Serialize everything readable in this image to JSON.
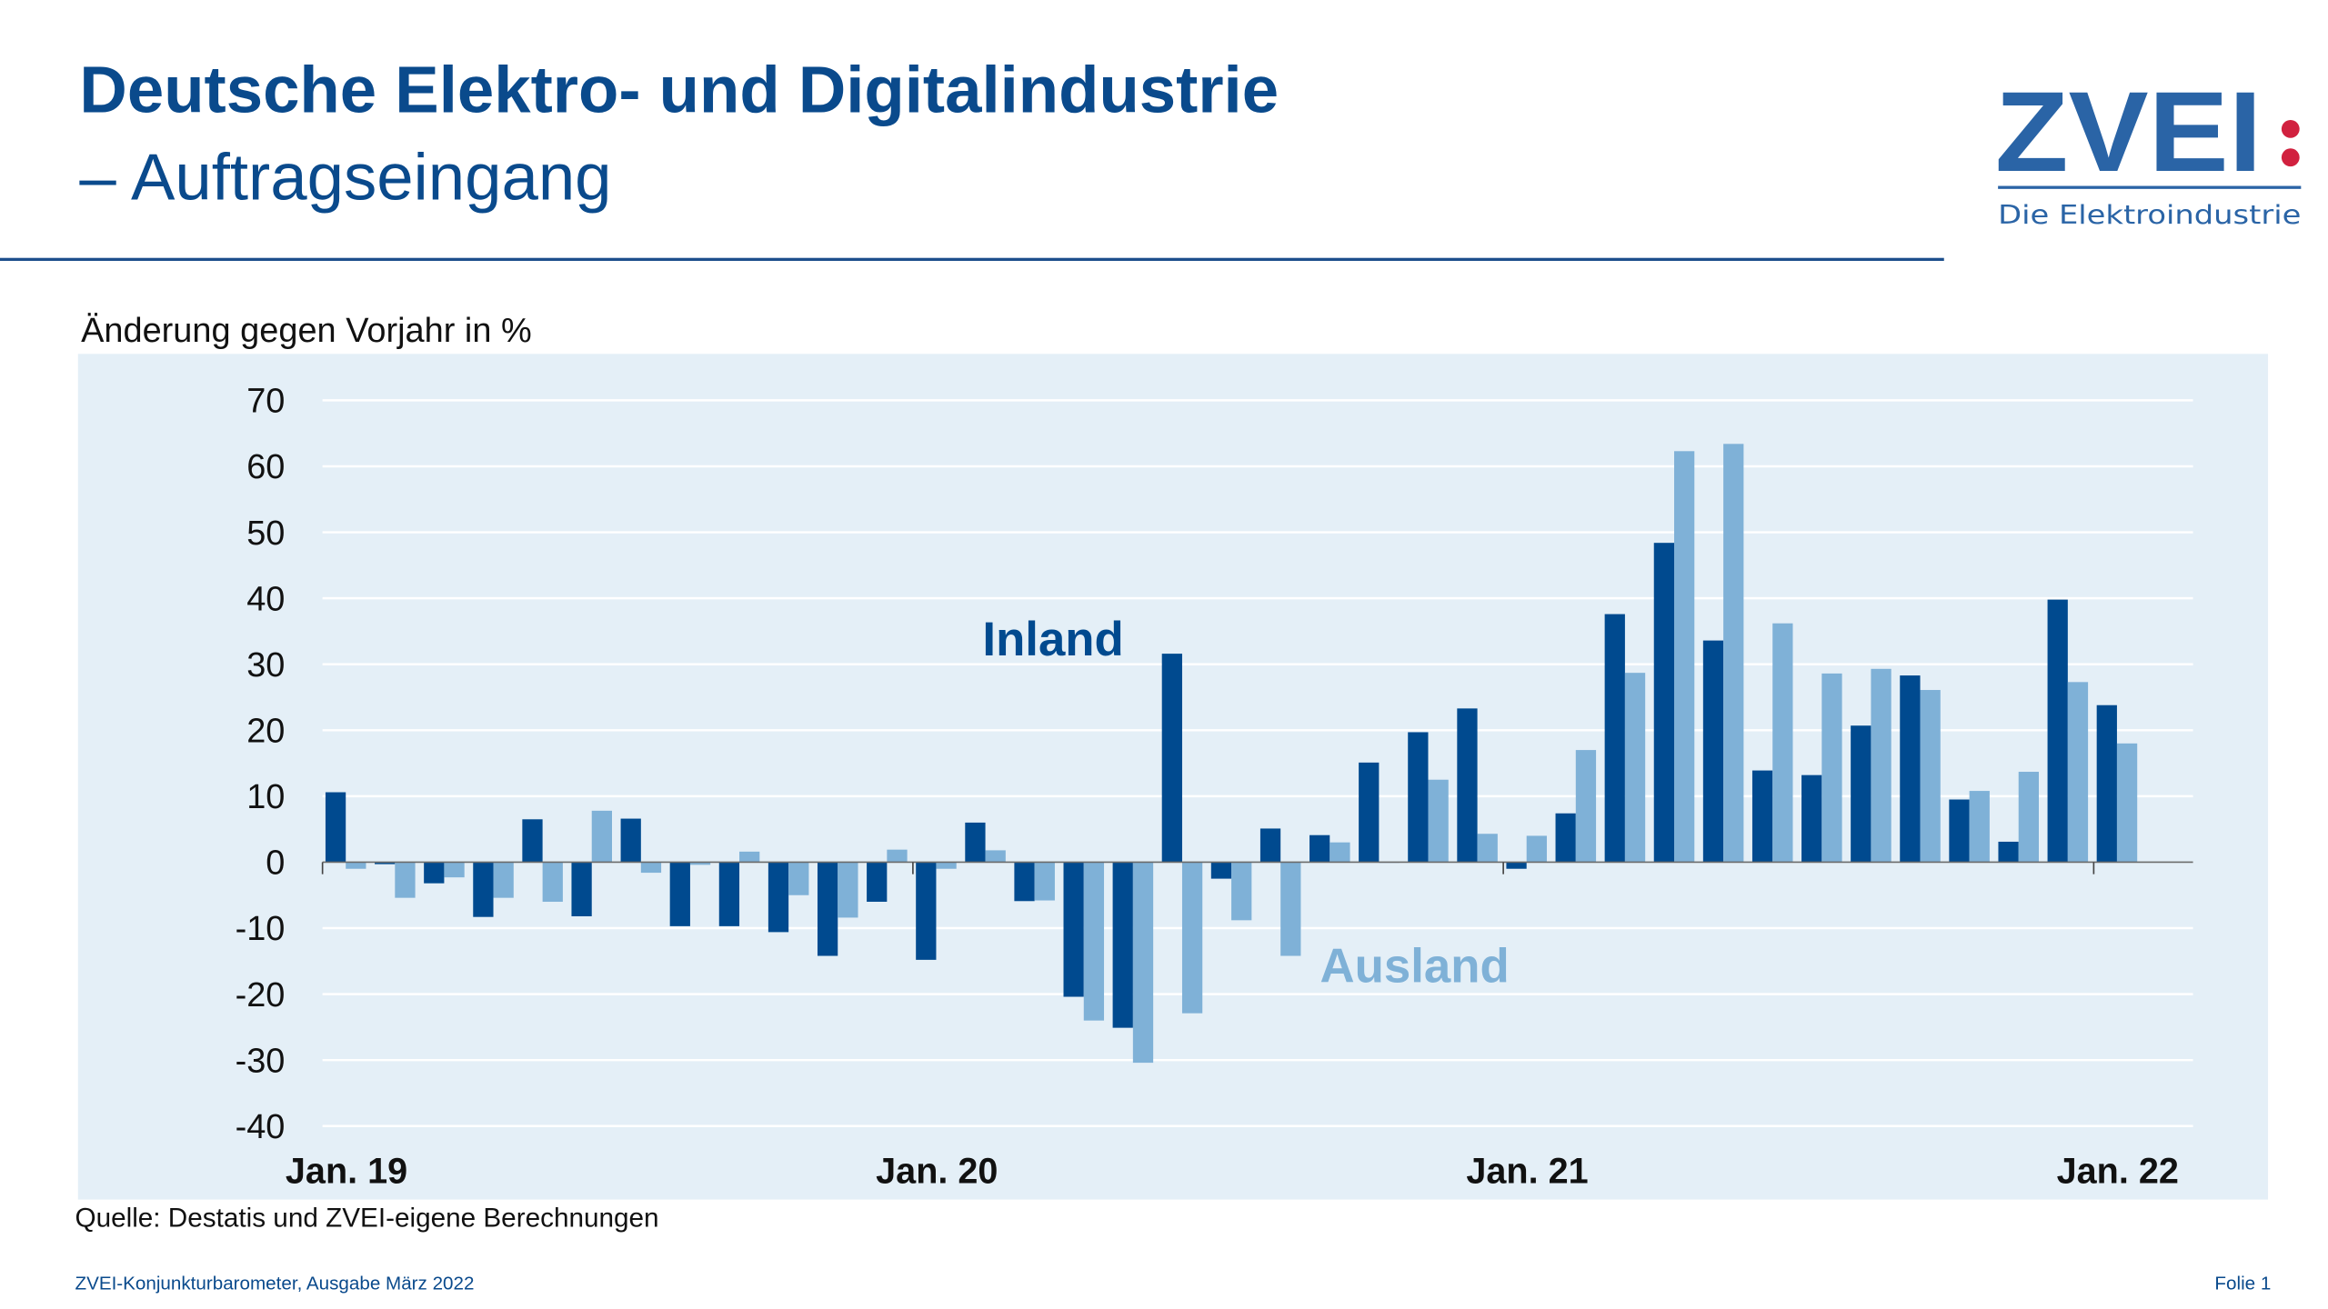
{
  "header": {
    "title_line1": "Deutsche Elektro- und Digitalindustrie",
    "title_line2": "– Auftragseingang",
    "logo_text": "ZVEI",
    "logo_tagline": "Die Elektroindustrie"
  },
  "chart_data": {
    "type": "bar",
    "subtitle": "Änderung gegen Vorjahr in %",
    "ylim": [
      -40,
      70
    ],
    "yticks": [
      70,
      60,
      50,
      40,
      30,
      20,
      10,
      0,
      -10,
      -20,
      -30,
      -40
    ],
    "grid": true,
    "x_tick_labels": [
      "Jan. 19",
      "Jan. 20",
      "Jan. 21",
      "Jan. 22"
    ],
    "categories": [
      "Jan 19",
      "Feb 19",
      "Mar 19",
      "Apr 19",
      "May 19",
      "Jun 19",
      "Jul 19",
      "Aug 19",
      "Sep 19",
      "Oct 19",
      "Nov 19",
      "Dec 19",
      "Jan 20",
      "Feb 20",
      "Mar 20",
      "Apr 20",
      "May 20",
      "Jun 20",
      "Jul 20",
      "Aug 20",
      "Sep 20",
      "Oct 20",
      "Nov 20",
      "Dec 20",
      "Jan 21",
      "Feb 21",
      "Mar 21",
      "Apr 21",
      "May 21",
      "Jun 21",
      "Jul 21",
      "Aug 21",
      "Sep 21",
      "Oct 21",
      "Nov 21",
      "Dec 21",
      "Jan 22"
    ],
    "series": [
      {
        "name": "Inland",
        "color": "#004a8f",
        "values": [
          10.6,
          -0.3,
          -3.2,
          -8.3,
          6.5,
          -8.2,
          6.6,
          -9.7,
          -9.7,
          -10.6,
          -14.2,
          -6.0,
          -14.8,
          6.0,
          -5.9,
          -20.4,
          -25.1,
          31.6,
          -2.5,
          5.1,
          4.1,
          15.1,
          19.7,
          23.3,
          -1.0,
          7.4,
          37.6,
          48.4,
          33.6,
          13.9,
          13.2,
          20.7,
          28.3,
          9.5,
          3.1,
          39.8,
          23.8
        ]
      },
      {
        "name": "Ausland",
        "color": "#7fb1d7",
        "values": [
          -1.0,
          -5.4,
          -2.3,
          -5.4,
          -6.0,
          7.8,
          -1.6,
          -0.4,
          1.6,
          -5.0,
          -8.4,
          1.9,
          -1.0,
          1.8,
          -5.8,
          -24.0,
          -30.4,
          -22.9,
          -8.8,
          -14.2,
          3.0,
          -0.1,
          12.5,
          4.3,
          4.0,
          17.0,
          28.7,
          62.3,
          63.4,
          36.2,
          28.6,
          29.3,
          26.1,
          10.8,
          13.7,
          27.3,
          18.0
        ]
      }
    ],
    "panel_color": "#e4eff7"
  },
  "footer": {
    "source": "Quelle: Destatis und ZVEI-eigene Berechnungen",
    "publication": "ZVEI-Konjunkturbarometer, Ausgabe März 2022",
    "page": "Folie 1"
  }
}
